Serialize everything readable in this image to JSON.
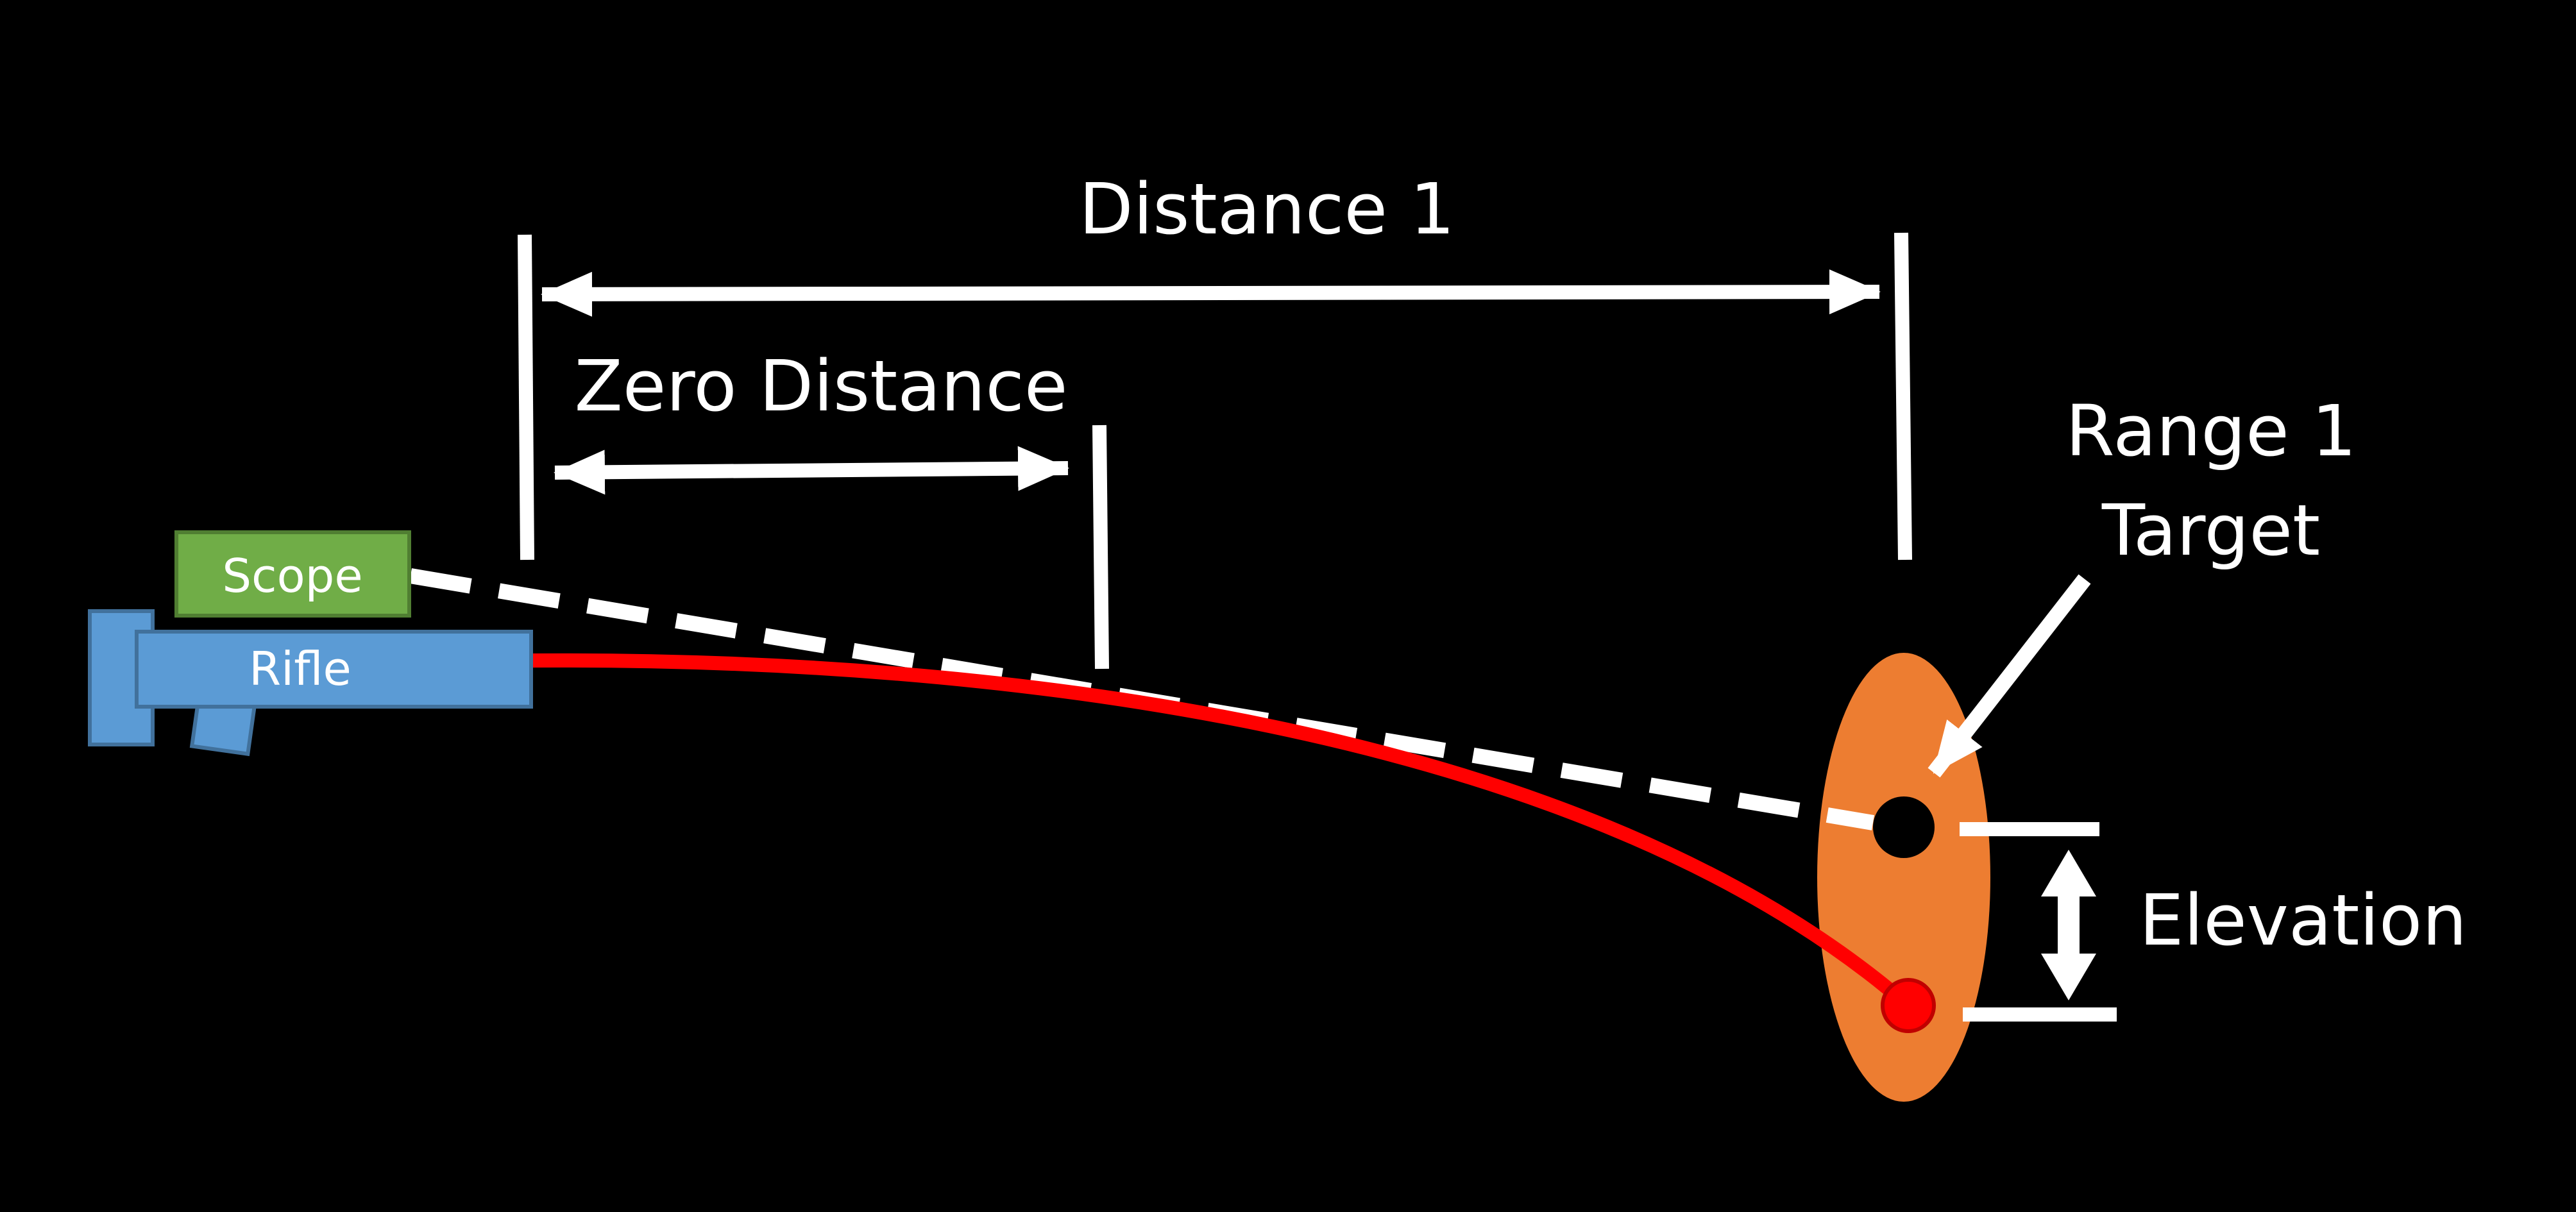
{
  "labels": {
    "distance_1": "Distance 1",
    "zero_distance": "Zero Distance",
    "target_line1": "Range 1",
    "target_line2": "Target",
    "elevation": "Elevation",
    "scope": "Scope",
    "rifle": "Rifle"
  },
  "colors": {
    "background": "#000000",
    "foreground": "#ffffff",
    "trajectory": "#ff0000",
    "target": "#ed7d31",
    "scope_fill": "#70ad47",
    "scope_border": "#507e32",
    "rifle_fill": "#5b9bd5",
    "rifle_border": "#41719c"
  }
}
